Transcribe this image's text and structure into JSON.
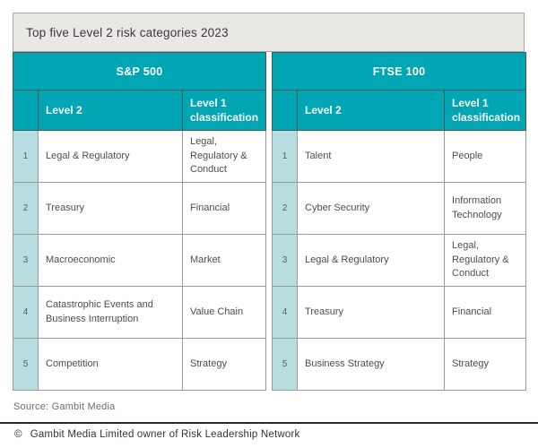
{
  "title": "Top five Level 2 risk categories 2023",
  "colors": {
    "teal": "#00A6B4",
    "light_teal": "#B7DDE1",
    "title_bg": "#E9E8E5",
    "body_border": "#9B9B9B",
    "rule": "#2B2827"
  },
  "chart_data": {
    "type": "table",
    "title": "Top five Level 2 risk categories 2023",
    "sections": [
      {
        "name": "S&P 500",
        "columns": [
          "",
          "Level 2",
          "Level 1 classification"
        ],
        "rows": [
          [
            "1",
            "Legal & Regulatory",
            "Legal, Regulatory & Conduct"
          ],
          [
            "2",
            "Treasury",
            "Financial"
          ],
          [
            "3",
            "Macroeconomic",
            "Market"
          ],
          [
            "4",
            "Catastrophic Events and Business Interruption",
            "Value Chain"
          ],
          [
            "5",
            "Competition",
            "Strategy"
          ]
        ]
      },
      {
        "name": "FTSE 100",
        "columns": [
          "",
          "Level 2",
          "Level 1 classification"
        ],
        "rows": [
          [
            "1",
            "Talent",
            "People"
          ],
          [
            "2",
            "Cyber Security",
            "Information Technology"
          ],
          [
            "3",
            "Legal & Regulatory",
            "Legal, Regulatory & Conduct"
          ],
          [
            "4",
            "Treasury",
            "Financial"
          ],
          [
            "5",
            "Business Strategy",
            "Strategy"
          ]
        ]
      }
    ],
    "source": "Source: Gambit Media"
  },
  "footer": {
    "source": "Source: Gambit Media",
    "copyright_symbol": "©",
    "copyright": "Gambit Media Limited owner of Risk Leadership Network"
  }
}
